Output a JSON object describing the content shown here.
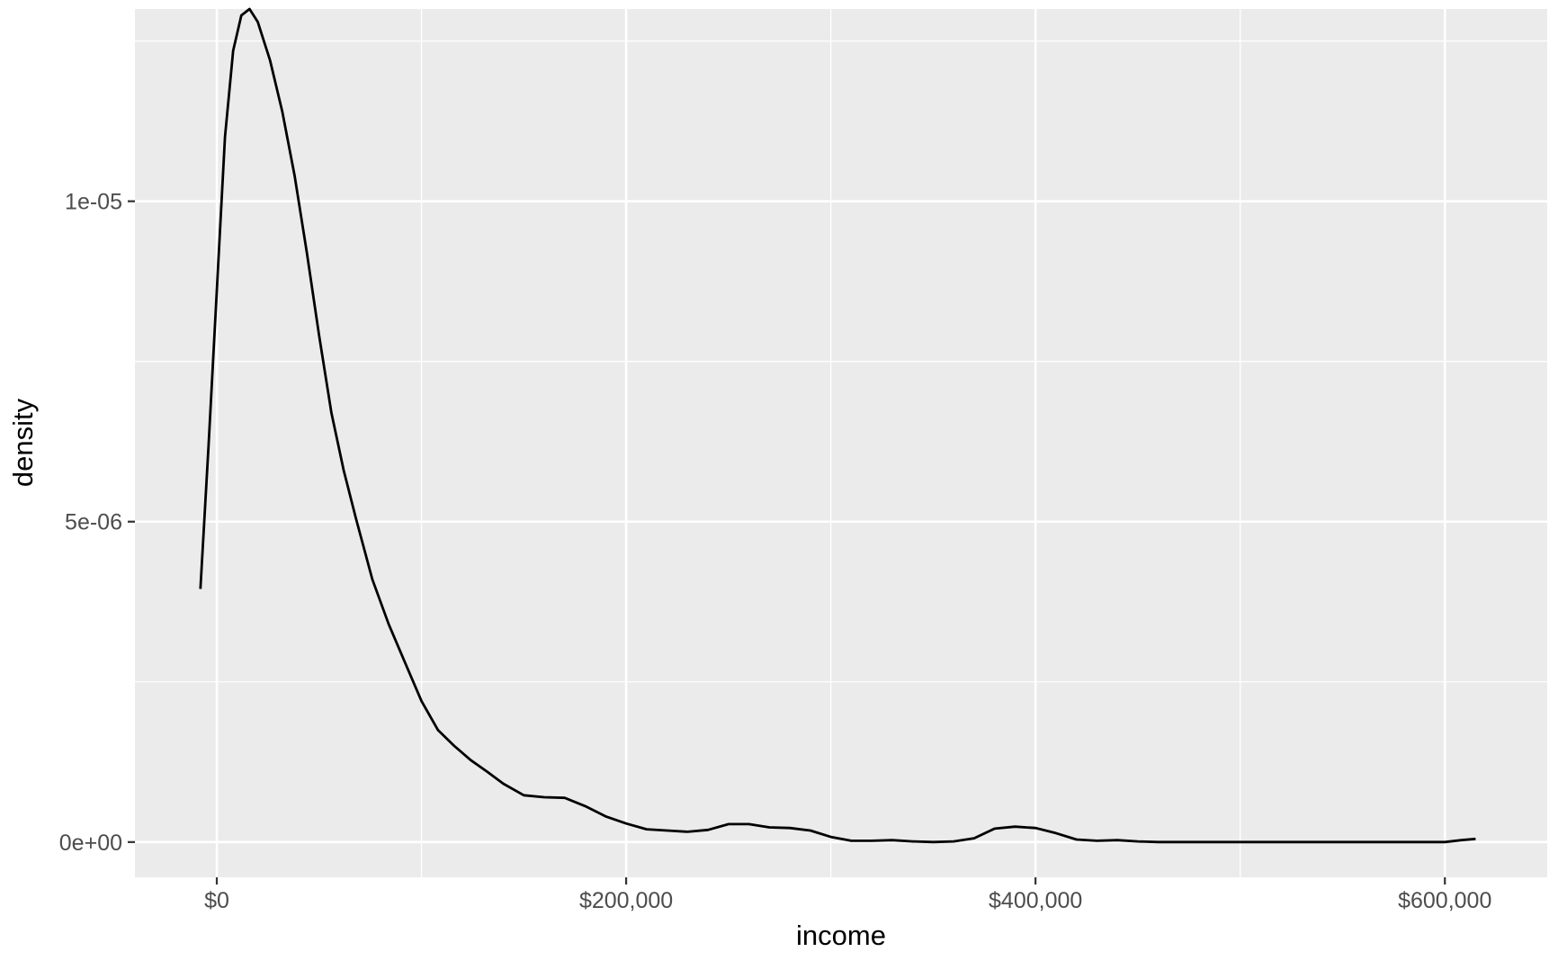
{
  "chart_data": {
    "type": "line",
    "subtype": "density",
    "xlabel": "income",
    "ylabel": "density",
    "xlim": [
      -40000,
      650000
    ],
    "ylim": [
      -5.5e-07,
      1.3e-05
    ],
    "x_ticks": [
      {
        "value": 0,
        "label": "$0"
      },
      {
        "value": 200000,
        "label": "$200,000"
      },
      {
        "value": 400000,
        "label": "$400,000"
      },
      {
        "value": 600000,
        "label": "$600,000"
      }
    ],
    "y_ticks": [
      {
        "value": 0,
        "label": "0e+00"
      },
      {
        "value": 5e-06,
        "label": "5e-06"
      },
      {
        "value": 1e-05,
        "label": "1e-05"
      }
    ],
    "grid": true,
    "legend": "none",
    "colors": {
      "panel": "#ebebeb",
      "grid": "#ffffff",
      "line": "#000000",
      "tick_text": "#4d4d4d"
    },
    "series": [
      {
        "x": [
          -8000,
          -4000,
          0,
          4000,
          8000,
          12000,
          16000,
          20000,
          26000,
          32000,
          38000,
          44000,
          50000,
          56000,
          62000,
          68000,
          76000,
          84000,
          92000,
          100000,
          108000,
          116000,
          124000,
          132000,
          140000,
          150000,
          160000,
          170000,
          180000,
          190000,
          200000,
          210000,
          220000,
          230000,
          240000,
          250000,
          260000,
          270000,
          280000,
          290000,
          300000,
          310000,
          320000,
          330000,
          340000,
          350000,
          360000,
          370000,
          380000,
          390000,
          400000,
          410000,
          420000,
          430000,
          440000,
          450000,
          460000,
          480000,
          500000,
          520000,
          540000,
          560000,
          580000,
          600000,
          608000,
          615000
        ],
        "y": [
          3.95e-06,
          6.2e-06,
          8.6e-06,
          1.1e-05,
          1.235e-05,
          1.29e-05,
          1.3e-05,
          1.28e-05,
          1.22e-05,
          1.14e-05,
          1.04e-05,
          9.2e-06,
          7.9e-06,
          6.7e-06,
          5.8e-06,
          5.05e-06,
          4.1e-06,
          3.4e-06,
          2.8e-06,
          2.2e-06,
          1.75e-06,
          1.5e-06,
          1.28e-06,
          1.1e-06,
          9.1e-07,
          7.3e-07,
          7e-07,
          6.9e-07,
          5.6e-07,
          4e-07,
          2.9e-07,
          2e-07,
          1.8e-07,
          1.6e-07,
          1.9e-07,
          2.8e-07,
          2.8e-07,
          2.3e-07,
          2.2e-07,
          1.8e-07,
          8e-08,
          2e-08,
          2e-08,
          3e-08,
          1e-08,
          0,
          1e-08,
          6e-08,
          2.1e-07,
          2.4e-07,
          2.2e-07,
          1.4e-07,
          4e-08,
          2e-08,
          3e-08,
          1e-08,
          0,
          0,
          0,
          0,
          0,
          0,
          0,
          0,
          3e-08,
          5e-08
        ]
      }
    ]
  }
}
